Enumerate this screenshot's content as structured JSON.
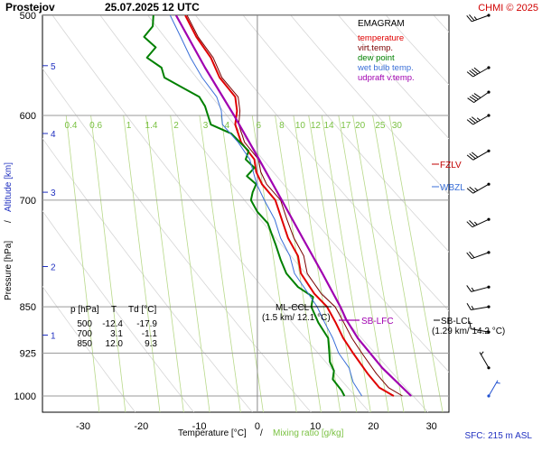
{
  "header": {
    "station": "Prostejov",
    "datetime": "25.07.2025 12 UTC",
    "copyright": "CHMI © 2025"
  },
  "legend": {
    "title": "EMAGRAM",
    "items": [
      {
        "label": "temperature",
        "color": "#e00000"
      },
      {
        "label": "virt.temp.",
        "color": "#7a0000"
      },
      {
        "label": "dew point",
        "color": "#008000"
      },
      {
        "label": "wet bulb temp.",
        "color": "#3a6fd8"
      },
      {
        "label": "udpraft v.temp.",
        "color": "#a000b0"
      }
    ]
  },
  "footer": {
    "sfc": "SFC: 215 m ASL"
  },
  "table": {
    "header": [
      "p [hPa]",
      "T",
      "Td [°C]"
    ],
    "rows": [
      [
        "500",
        "-12.4",
        "-17.9"
      ],
      [
        "700",
        "3.1",
        "-1.1"
      ],
      [
        "850",
        "12.0",
        "9.3"
      ]
    ]
  },
  "annotations": {
    "ml_ccl_line1": "ML-CCL",
    "ml_ccl_line2": "(1.5 km/ 12.1 °C)",
    "sb_lfc": "SB-LFC",
    "sb_lcl_line1": "SB-LCL",
    "sb_lcl_line2": "(1.29 km/ 14.2 °C)",
    "fzlv": "FZLV",
    "wbzl": "WBZL"
  },
  "chart_data": {
    "type": "line",
    "title": "Prostejov 25.07.2025 12 UTC",
    "xlabel": "Temperature [°C]",
    "xlabel2": "Mixing ratio [g/kg]",
    "xlabel_sep": "/",
    "ylabel": "Pressure [hPa]",
    "ylabel2": "Altitude [km]",
    "ylabel_sep": "/",
    "y_scale": "log",
    "xlim": [
      -37,
      33
    ],
    "ylim": [
      1030,
      500
    ],
    "grid": true,
    "x_ticks": [
      -30,
      -20,
      -10,
      0,
      10,
      20,
      30
    ],
    "pressure_ticks": [
      500,
      600,
      700,
      850,
      925,
      1000
    ],
    "altitude_ticks": [
      {
        "km": 1,
        "p": 895
      },
      {
        "km": 2,
        "p": 790
      },
      {
        "km": 3,
        "p": 690
      },
      {
        "km": 4,
        "p": 620
      },
      {
        "km": 5,
        "p": 548
      }
    ],
    "mixing_ratio_labels": [
      "0.4",
      "0.6",
      "1",
      "1.4",
      "2",
      "3",
      "4",
      "6",
      "8",
      "10",
      "12",
      "14",
      "17",
      "20",
      "25",
      "30"
    ],
    "mixing_ratio_values": [
      0.4,
      0.6,
      1,
      1.4,
      2,
      3,
      4,
      6,
      8,
      10,
      12,
      14,
      17,
      20,
      25,
      30
    ],
    "series": [
      {
        "name": "temperature",
        "color": "#e00000",
        "points": [
          [
            1000,
            23.5
          ],
          [
            985,
            21.0
          ],
          [
            960,
            19.0
          ],
          [
            925,
            16.5
          ],
          [
            900,
            14.8
          ],
          [
            875,
            13.5
          ],
          [
            850,
            12.0
          ],
          [
            830,
            9.8
          ],
          [
            800,
            7.5
          ],
          [
            775,
            7.0
          ],
          [
            750,
            5.3
          ],
          [
            725,
            4.2
          ],
          [
            700,
            3.1
          ],
          [
            680,
            0.8
          ],
          [
            665,
            -0.2
          ],
          [
            650,
            -0.5
          ],
          [
            630,
            -2.8
          ],
          [
            610,
            -3.8
          ],
          [
            595,
            -3.5
          ],
          [
            580,
            -3.8
          ],
          [
            560,
            -6.5
          ],
          [
            540,
            -8.0
          ],
          [
            520,
            -10.5
          ],
          [
            500,
            -12.4
          ]
        ]
      },
      {
        "name": "virt.temp.",
        "color": "#7a0000",
        "points": [
          [
            1000,
            25.0
          ],
          [
            985,
            22.6
          ],
          [
            960,
            20.5
          ],
          [
            925,
            18.0
          ],
          [
            900,
            16.3
          ],
          [
            875,
            14.9
          ],
          [
            850,
            13.4
          ],
          [
            830,
            11.0
          ],
          [
            800,
            8.6
          ],
          [
            775,
            8.0
          ],
          [
            750,
            6.3
          ],
          [
            725,
            5.1
          ],
          [
            700,
            4.0
          ],
          [
            680,
            1.6
          ],
          [
            665,
            0.6
          ],
          [
            650,
            0.2
          ],
          [
            630,
            -2.2
          ],
          [
            610,
            -3.2
          ],
          [
            595,
            -3.0
          ],
          [
            580,
            -3.3
          ],
          [
            560,
            -6.1
          ],
          [
            540,
            -7.6
          ],
          [
            520,
            -10.2
          ],
          [
            500,
            -12.1
          ]
        ]
      },
      {
        "name": "dew point",
        "color": "#008000",
        "points": [
          [
            1000,
            15.0
          ],
          [
            990,
            14.5
          ],
          [
            970,
            13.0
          ],
          [
            955,
            13.2
          ],
          [
            940,
            12.5
          ],
          [
            925,
            12.4
          ],
          [
            900,
            12.2
          ],
          [
            875,
            10.5
          ],
          [
            850,
            9.3
          ],
          [
            835,
            9.6
          ],
          [
            820,
            7.0
          ],
          [
            800,
            5.0
          ],
          [
            780,
            4.0
          ],
          [
            760,
            3.2
          ],
          [
            745,
            2.5
          ],
          [
            730,
            1.8
          ],
          [
            715,
            0.0
          ],
          [
            700,
            -1.1
          ],
          [
            690,
            -0.8
          ],
          [
            680,
            -0.2
          ],
          [
            670,
            -1.8
          ],
          [
            660,
            -0.5
          ],
          [
            650,
            -2.0
          ],
          [
            640,
            -1.5
          ],
          [
            630,
            -3.0
          ],
          [
            620,
            -4.5
          ],
          [
            610,
            -8.0
          ],
          [
            600,
            -8.5
          ],
          [
            590,
            -9.0
          ],
          [
            580,
            -10.0
          ],
          [
            570,
            -13.0
          ],
          [
            560,
            -16.0
          ],
          [
            550,
            -16.5
          ],
          [
            540,
            -19.0
          ],
          [
            530,
            -17.5
          ],
          [
            520,
            -19.5
          ],
          [
            510,
            -18.0
          ],
          [
            500,
            -17.9
          ]
        ]
      },
      {
        "name": "wet bulb temp.",
        "color": "#3a6fd8",
        "points": [
          [
            1000,
            18.0
          ],
          [
            975,
            16.5
          ],
          [
            950,
            15.8
          ],
          [
            925,
            14.0
          ],
          [
            900,
            13.0
          ],
          [
            875,
            11.6
          ],
          [
            850,
            10.3
          ],
          [
            830,
            8.8
          ],
          [
            800,
            6.4
          ],
          [
            775,
            5.6
          ],
          [
            750,
            4.0
          ],
          [
            725,
            3.0
          ],
          [
            700,
            1.2
          ],
          [
            680,
            -0.1
          ],
          [
            665,
            -0.7
          ],
          [
            650,
            -1.3
          ],
          [
            630,
            -3.3
          ],
          [
            610,
            -6.0
          ],
          [
            595,
            -6.2
          ],
          [
            580,
            -7.0
          ],
          [
            560,
            -9.5
          ],
          [
            540,
            -11.5
          ],
          [
            520,
            -13.2
          ],
          [
            500,
            -15.0
          ]
        ]
      },
      {
        "name": "udpraft v.temp.",
        "color": "#a000b0",
        "points": [
          [
            1000,
            26.5
          ],
          [
            950,
            21.5
          ],
          [
            900,
            17.3
          ],
          [
            870,
            15.3
          ],
          [
            850,
            14.3
          ],
          [
            800,
            11.2
          ],
          [
            750,
            7.8
          ],
          [
            700,
            4.2
          ],
          [
            650,
            0.3
          ],
          [
            600,
            -4.0
          ],
          [
            550,
            -9.0
          ],
          [
            500,
            -14.0
          ]
        ]
      }
    ],
    "levels": [
      {
        "name": "FZLV",
        "p": 640,
        "color": "#c00000"
      },
      {
        "name": "WBZL",
        "p": 670,
        "color": "#3a6fd8"
      }
    ],
    "wind_barbs": [
      {
        "p": 500,
        "dir": 250,
        "kt": 25
      },
      {
        "p": 550,
        "dir": 240,
        "kt": 40
      },
      {
        "p": 575,
        "dir": 235,
        "kt": 40
      },
      {
        "p": 600,
        "dir": 240,
        "kt": 35
      },
      {
        "p": 640,
        "dir": 240,
        "kt": 30
      },
      {
        "p": 680,
        "dir": 240,
        "kt": 25
      },
      {
        "p": 725,
        "dir": 245,
        "kt": 25
      },
      {
        "p": 770,
        "dir": 250,
        "kt": 20
      },
      {
        "p": 820,
        "dir": 255,
        "kt": 15
      },
      {
        "p": 850,
        "dir": 260,
        "kt": 15
      },
      {
        "p": 890,
        "dir": 280,
        "kt": 10
      },
      {
        "p": 950,
        "dir": 330,
        "kt": 5
      },
      {
        "p": 1000,
        "dir": 30,
        "kt": 5,
        "color": "#2050d0"
      }
    ]
  }
}
